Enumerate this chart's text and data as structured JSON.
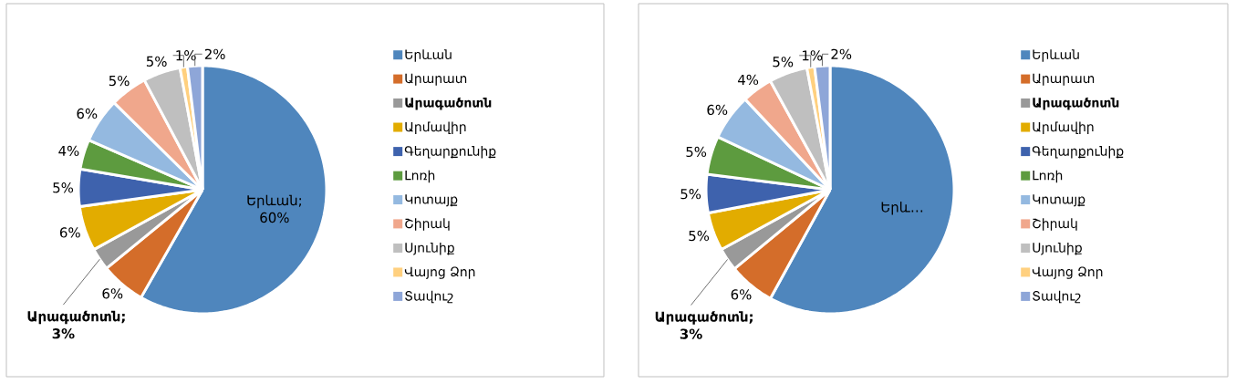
{
  "chart_data": [
    {
      "type": "pie",
      "categories": [
        "Երևան",
        "Արարատ",
        "**Արագածոտն**",
        "Արմավիր",
        "Գեղարքունիք",
        "Լոռի",
        "Կոտայք",
        "Շիրակ",
        "Սյունիք",
        "Վայոց Ձոր",
        "Տավուշ"
      ],
      "values": [
        60,
        6,
        3,
        6,
        5,
        4,
        6,
        5,
        5,
        1,
        2
      ],
      "colors": [
        "#4f86bd",
        "#d46d2a",
        "#999999",
        "#e2ac00",
        "#3e62ad",
        "#5d9b3f",
        "#94b9e0",
        "#f0a78c",
        "#bfbfbf",
        "#ffd07f",
        "#8ea6d8"
      ],
      "value_labels": [
        "Երևան; 60%",
        "6%",
        "**Արագածոտն; 3%**",
        "6%",
        "5%",
        "4%",
        "6%",
        "5%",
        "5%",
        "1%",
        "2%"
      ],
      "legend": "right"
    },
    {
      "type": "pie",
      "categories": [
        "Երևան",
        "Արարատ",
        "**Արագածոտն**",
        "Արմավիր",
        "Գեղարքունիք",
        "Լոռի",
        "Կոտայք",
        "Շիրակ",
        "Սյունիք",
        "Վայոց Ձոր",
        "Տավուշ"
      ],
      "values": [
        58,
        6,
        3,
        5,
        5,
        5,
        6,
        4,
        5,
        1,
        2
      ],
      "colors": [
        "#4f86bd",
        "#d46d2a",
        "#999999",
        "#e2ac00",
        "#3e62ad",
        "#5d9b3f",
        "#94b9e0",
        "#f0a78c",
        "#bfbfbf",
        "#ffd07f",
        "#8ea6d8"
      ],
      "value_labels": [
        "Երև…",
        "6%",
        "**Արագածոտն; 3%**",
        "5%",
        "5%",
        "5%",
        "6%",
        "4%",
        "5%",
        "1%",
        "2%"
      ],
      "legend": "right"
    }
  ]
}
